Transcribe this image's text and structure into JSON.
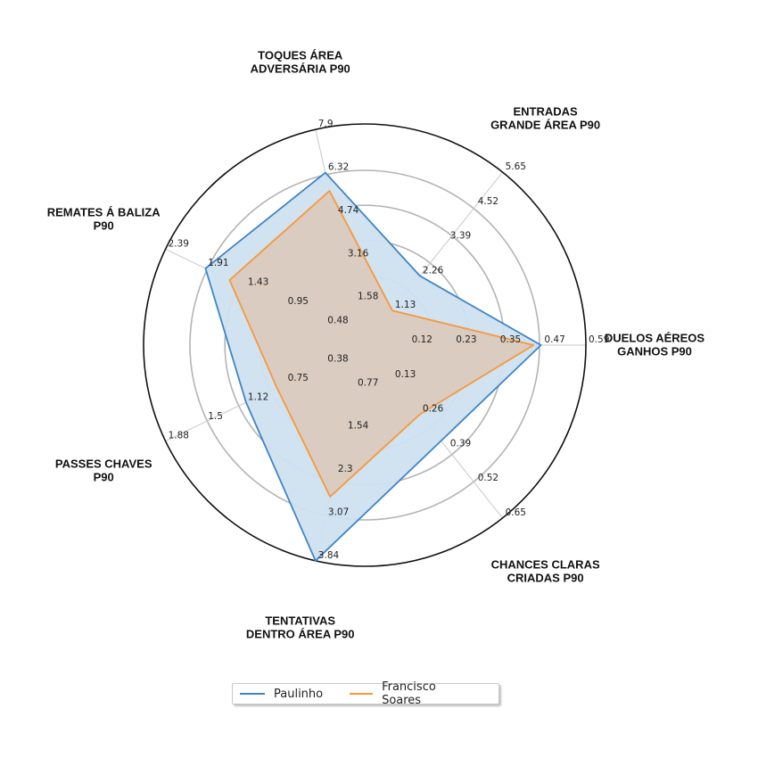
{
  "chart_data": {
    "type": "radar",
    "axes": [
      {
        "label_lines": [
          "DUELOS AÉREOS",
          "GANHOS P90"
        ],
        "max": 0.59,
        "ticks": [
          "0.12",
          "0.23",
          "0.35",
          "0.47",
          "0.59"
        ]
      },
      {
        "label_lines": [
          "ENTRADAS",
          "GRANDE ÁREA P90"
        ],
        "max": 5.65,
        "ticks": [
          "1.13",
          "2.26",
          "3.39",
          "4.52",
          "5.65"
        ]
      },
      {
        "label_lines": [
          "TOQUES ÁREA",
          "ADVERSÁRIA P90"
        ],
        "max": 7.9,
        "ticks": [
          "1.58",
          "3.16",
          "4.74",
          "6.32",
          "7.9"
        ]
      },
      {
        "label_lines": [
          "REMATES Á BALIZA",
          "P90"
        ],
        "max": 2.39,
        "ticks": [
          "0.48",
          "0.95",
          "1.43",
          "1.91",
          "2.39"
        ]
      },
      {
        "label_lines": [
          "PASSES CHAVES",
          "P90"
        ],
        "max": 1.88,
        "ticks": [
          "0.38",
          "0.75",
          "1.12",
          "1.5",
          "1.88"
        ]
      },
      {
        "label_lines": [
          "TENTATIVAS",
          "DENTRO ÁREA P90"
        ],
        "max": 3.84,
        "ticks": [
          "0.77",
          "1.54",
          "2.3",
          "3.07",
          "3.84"
        ]
      },
      {
        "label_lines": [
          "CHANCES CLARAS",
          "CRIADAS P90"
        ],
        "max": 0.65,
        "ticks": [
          "0.13",
          "0.26",
          "0.39",
          "0.52",
          "0.65"
        ]
      }
    ],
    "series": [
      {
        "name": "Paulinho",
        "color": "#3d85c6",
        "fill": "#cfe0ef",
        "values": [
          0.47,
          2.26,
          6.32,
          1.91,
          1.12,
          3.84,
          0.36
        ]
      },
      {
        "name": "Francisco Soares",
        "color": "#f7983a",
        "fill": "#dcc4b2",
        "values": [
          0.45,
          1.13,
          5.65,
          1.62,
          0.83,
          2.7,
          0.26
        ]
      }
    ],
    "grid_rings": 5,
    "legend_position": "bottom-center"
  }
}
